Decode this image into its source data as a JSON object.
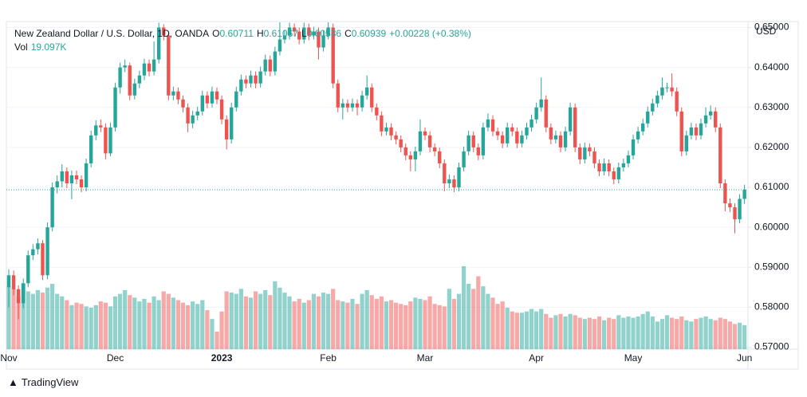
{
  "chart_data": {
    "type": "candlestick",
    "title": "New Zealand Dollar / U.S. Dollar, 1D, OANDA",
    "legend": {
      "o": "O",
      "h": "H",
      "l": "L",
      "c": "C",
      "change": "+0.00228 (+0.38%)",
      "vol": "Vol",
      "vol_value": "19.097K"
    },
    "y_axis_label": "USD",
    "up_color": "#26a69a",
    "down_color": "#ef5350",
    "grid": true,
    "ylim": [
      0.5695,
      0.6513
    ],
    "yticks": [
      {
        "value": 0.57,
        "label": "0.57000"
      },
      {
        "value": 0.58,
        "label": "0.58000"
      },
      {
        "value": 0.59,
        "label": "0.59000"
      },
      {
        "value": 0.6,
        "label": "0.60000"
      },
      {
        "value": 0.61,
        "label": "0.61000"
      },
      {
        "value": 0.62,
        "label": "0.62000"
      },
      {
        "value": 0.63,
        "label": "0.63000"
      },
      {
        "value": 0.64,
        "label": "0.64000"
      },
      {
        "value": 0.65,
        "label": "0.65000"
      }
    ],
    "volume_lim": [
      0,
      260000
    ],
    "categories": [
      "Nov",
      null,
      null,
      null,
      null,
      null,
      null,
      null,
      null,
      null,
      null,
      null,
      null,
      null,
      null,
      null,
      null,
      null,
      null,
      null,
      null,
      null,
      "Dec",
      null,
      null,
      null,
      null,
      null,
      null,
      null,
      null,
      null,
      null,
      null,
      null,
      null,
      null,
      null,
      null,
      null,
      null,
      null,
      null,
      null,
      "2023",
      null,
      null,
      null,
      null,
      null,
      null,
      null,
      null,
      null,
      null,
      null,
      null,
      null,
      null,
      null,
      null,
      null,
      null,
      null,
      null,
      null,
      "Feb",
      null,
      null,
      null,
      null,
      null,
      null,
      null,
      null,
      null,
      null,
      null,
      null,
      null,
      null,
      null,
      null,
      null,
      null,
      null,
      "Mar",
      null,
      null,
      null,
      null,
      null,
      null,
      null,
      null,
      null,
      null,
      null,
      null,
      null,
      null,
      null,
      null,
      null,
      null,
      null,
      null,
      null,
      null,
      "Apr",
      null,
      null,
      null,
      null,
      null,
      null,
      null,
      null,
      null,
      null,
      null,
      null,
      null,
      null,
      null,
      null,
      null,
      null,
      null,
      "May",
      null,
      null,
      null,
      null,
      null,
      null,
      null,
      null,
      null,
      null,
      null,
      null,
      null,
      null,
      null,
      null,
      null,
      null,
      null,
      null,
      null,
      null,
      "Jun"
    ],
    "candles": [
      [
        0.585,
        0.5895,
        0.58,
        0.588
      ],
      [
        0.588,
        0.5892,
        0.583,
        0.5845
      ],
      [
        0.5845,
        0.5855,
        0.577,
        0.581
      ],
      [
        0.581,
        0.5872,
        0.5798,
        0.586
      ],
      [
        0.586,
        0.5942,
        0.585,
        0.593
      ],
      [
        0.593,
        0.5958,
        0.5918,
        0.5945
      ],
      [
        0.5945,
        0.5972,
        0.5932,
        0.596
      ],
      [
        0.596,
        0.5968,
        0.5868,
        0.588
      ],
      [
        0.588,
        0.6012,
        0.587,
        0.6
      ],
      [
        0.6,
        0.6112,
        0.599,
        0.61
      ],
      [
        0.61,
        0.613,
        0.6085,
        0.6115
      ],
      [
        0.6115,
        0.6158,
        0.61,
        0.614
      ],
      [
        0.614,
        0.615,
        0.6098,
        0.611
      ],
      [
        0.611,
        0.6142,
        0.607,
        0.613
      ],
      [
        0.613,
        0.6142,
        0.6108,
        0.612
      ],
      [
        0.612,
        0.613,
        0.6088,
        0.61
      ],
      [
        0.61,
        0.6172,
        0.609,
        0.616
      ],
      [
        0.616,
        0.6242,
        0.615,
        0.623
      ],
      [
        0.623,
        0.6268,
        0.6218,
        0.6255
      ],
      [
        0.6255,
        0.627,
        0.6238,
        0.625
      ],
      [
        0.625,
        0.626,
        0.617,
        0.6185
      ],
      [
        0.6185,
        0.6262,
        0.6178,
        0.625
      ],
      [
        0.625,
        0.6362,
        0.624,
        0.635
      ],
      [
        0.635,
        0.6412,
        0.6335,
        0.64
      ],
      [
        0.64,
        0.642,
        0.6388,
        0.6405
      ],
      [
        0.6405,
        0.6412,
        0.6318,
        0.633
      ],
      [
        0.633,
        0.6372,
        0.632,
        0.636
      ],
      [
        0.636,
        0.6392,
        0.6348,
        0.638
      ],
      [
        0.638,
        0.6422,
        0.6368,
        0.641
      ],
      [
        0.641,
        0.642,
        0.6378,
        0.639
      ],
      [
        0.639,
        0.6465,
        0.638,
        0.642
      ],
      [
        0.642,
        0.6512,
        0.641,
        0.65
      ],
      [
        0.65,
        0.6508,
        0.6468,
        0.648
      ],
      [
        0.648,
        0.649,
        0.6318,
        0.633
      ],
      [
        0.633,
        0.6352,
        0.6318,
        0.634
      ],
      [
        0.634,
        0.635,
        0.6308,
        0.632
      ],
      [
        0.632,
        0.633,
        0.6288,
        0.63
      ],
      [
        0.63,
        0.631,
        0.6238,
        0.626
      ],
      [
        0.626,
        0.6292,
        0.6248,
        0.628
      ],
      [
        0.628,
        0.6302,
        0.6268,
        0.629
      ],
      [
        0.629,
        0.6342,
        0.628,
        0.633
      ],
      [
        0.633,
        0.634,
        0.6298,
        0.631
      ],
      [
        0.631,
        0.6352,
        0.63,
        0.634
      ],
      [
        0.634,
        0.635,
        0.6308,
        0.632
      ],
      [
        0.632,
        0.633,
        0.6258,
        0.627
      ],
      [
        0.627,
        0.628,
        0.6195,
        0.622
      ],
      [
        0.622,
        0.6312,
        0.621,
        0.63
      ],
      [
        0.63,
        0.6352,
        0.629,
        0.634
      ],
      [
        0.634,
        0.6382,
        0.633,
        0.637
      ],
      [
        0.637,
        0.638,
        0.6348,
        0.636
      ],
      [
        0.636,
        0.6392,
        0.635,
        0.638
      ],
      [
        0.638,
        0.639,
        0.6348,
        0.636
      ],
      [
        0.636,
        0.6402,
        0.635,
        0.639
      ],
      [
        0.639,
        0.6432,
        0.638,
        0.642
      ],
      [
        0.642,
        0.643,
        0.6378,
        0.639
      ],
      [
        0.639,
        0.6452,
        0.638,
        0.644
      ],
      [
        0.644,
        0.653,
        0.643,
        0.647
      ],
      [
        0.647,
        0.6492,
        0.646,
        0.648
      ],
      [
        0.648,
        0.6512,
        0.647,
        0.65
      ],
      [
        0.65,
        0.651,
        0.6478,
        0.649
      ],
      [
        0.649,
        0.65,
        0.6458,
        0.647
      ],
      [
        0.647,
        0.6512,
        0.646,
        0.65
      ],
      [
        0.65,
        0.651,
        0.6468,
        0.648
      ],
      [
        0.648,
        0.6502,
        0.647,
        0.649
      ],
      [
        0.649,
        0.65,
        0.642,
        0.645
      ],
      [
        0.645,
        0.6492,
        0.644,
        0.648
      ],
      [
        0.648,
        0.6535,
        0.647,
        0.65
      ],
      [
        0.65,
        0.651,
        0.6348,
        0.636
      ],
      [
        0.636,
        0.637,
        0.6288,
        0.63
      ],
      [
        0.63,
        0.6322,
        0.627,
        0.631
      ],
      [
        0.631,
        0.632,
        0.6288,
        0.63
      ],
      [
        0.63,
        0.6322,
        0.629,
        0.631
      ],
      [
        0.631,
        0.632,
        0.628,
        0.63
      ],
      [
        0.63,
        0.6342,
        0.629,
        0.633
      ],
      [
        0.633,
        0.638,
        0.632,
        0.635
      ],
      [
        0.635,
        0.636,
        0.6288,
        0.63
      ],
      [
        0.63,
        0.631,
        0.6268,
        0.628
      ],
      [
        0.628,
        0.629,
        0.6228,
        0.624
      ],
      [
        0.624,
        0.6262,
        0.623,
        0.625
      ],
      [
        0.625,
        0.626,
        0.6218,
        0.623
      ],
      [
        0.623,
        0.624,
        0.6208,
        0.622
      ],
      [
        0.622,
        0.623,
        0.6188,
        0.62
      ],
      [
        0.62,
        0.621,
        0.6168,
        0.618
      ],
      [
        0.618,
        0.619,
        0.614,
        0.617
      ],
      [
        0.617,
        0.6202,
        0.614,
        0.619
      ],
      [
        0.619,
        0.627,
        0.618,
        0.624
      ],
      [
        0.624,
        0.625,
        0.6218,
        0.623
      ],
      [
        0.623,
        0.624,
        0.6188,
        0.62
      ],
      [
        0.62,
        0.621,
        0.6178,
        0.619
      ],
      [
        0.619,
        0.62,
        0.6148,
        0.616
      ],
      [
        0.616,
        0.617,
        0.609,
        0.611
      ],
      [
        0.611,
        0.6132,
        0.6098,
        0.612
      ],
      [
        0.612,
        0.613,
        0.6088,
        0.61
      ],
      [
        0.61,
        0.6162,
        0.609,
        0.615
      ],
      [
        0.615,
        0.6202,
        0.614,
        0.619
      ],
      [
        0.619,
        0.6242,
        0.618,
        0.623
      ],
      [
        0.623,
        0.624,
        0.6188,
        0.62
      ],
      [
        0.62,
        0.621,
        0.6168,
        0.618
      ],
      [
        0.618,
        0.6262,
        0.617,
        0.625
      ],
      [
        0.625,
        0.6285,
        0.624,
        0.627
      ],
      [
        0.627,
        0.628,
        0.6228,
        0.624
      ],
      [
        0.624,
        0.625,
        0.6218,
        0.623
      ],
      [
        0.623,
        0.624,
        0.6198,
        0.621
      ],
      [
        0.621,
        0.6262,
        0.62,
        0.625
      ],
      [
        0.625,
        0.626,
        0.6228,
        0.624
      ],
      [
        0.624,
        0.625,
        0.6198,
        0.621
      ],
      [
        0.621,
        0.6242,
        0.62,
        0.623
      ],
      [
        0.623,
        0.6262,
        0.622,
        0.625
      ],
      [
        0.625,
        0.6282,
        0.624,
        0.627
      ],
      [
        0.627,
        0.6312,
        0.626,
        0.63
      ],
      [
        0.63,
        0.6375,
        0.629,
        0.632
      ],
      [
        0.632,
        0.633,
        0.6238,
        0.625
      ],
      [
        0.625,
        0.626,
        0.6208,
        0.622
      ],
      [
        0.622,
        0.6242,
        0.621,
        0.623
      ],
      [
        0.623,
        0.624,
        0.6188,
        0.62
      ],
      [
        0.62,
        0.6252,
        0.619,
        0.624
      ],
      [
        0.624,
        0.6312,
        0.623,
        0.63
      ],
      [
        0.63,
        0.631,
        0.6188,
        0.62
      ],
      [
        0.62,
        0.621,
        0.6158,
        0.617
      ],
      [
        0.617,
        0.6212,
        0.616,
        0.62
      ],
      [
        0.62,
        0.621,
        0.6178,
        0.619
      ],
      [
        0.619,
        0.62,
        0.6148,
        0.616
      ],
      [
        0.616,
        0.617,
        0.6128,
        0.614
      ],
      [
        0.614,
        0.6172,
        0.613,
        0.616
      ],
      [
        0.616,
        0.617,
        0.6128,
        0.614
      ],
      [
        0.614,
        0.615,
        0.6108,
        0.612
      ],
      [
        0.612,
        0.6162,
        0.611,
        0.615
      ],
      [
        0.615,
        0.6172,
        0.614,
        0.616
      ],
      [
        0.616,
        0.6192,
        0.615,
        0.618
      ],
      [
        0.618,
        0.6232,
        0.617,
        0.622
      ],
      [
        0.622,
        0.6252,
        0.621,
        0.624
      ],
      [
        0.624,
        0.6272,
        0.623,
        0.626
      ],
      [
        0.626,
        0.6302,
        0.625,
        0.629
      ],
      [
        0.629,
        0.6322,
        0.628,
        0.631
      ],
      [
        0.631,
        0.6342,
        0.63,
        0.633
      ],
      [
        0.633,
        0.6375,
        0.632,
        0.635
      ],
      [
        0.635,
        0.6362,
        0.6338,
        0.635
      ],
      [
        0.635,
        0.6385,
        0.6328,
        0.634
      ],
      [
        0.634,
        0.635,
        0.6278,
        0.629
      ],
      [
        0.629,
        0.63,
        0.6178,
        0.619
      ],
      [
        0.619,
        0.6242,
        0.618,
        0.623
      ],
      [
        0.623,
        0.6262,
        0.622,
        0.625
      ],
      [
        0.625,
        0.626,
        0.6218,
        0.623
      ],
      [
        0.623,
        0.6272,
        0.622,
        0.626
      ],
      [
        0.626,
        0.63,
        0.625,
        0.628
      ],
      [
        0.628,
        0.6305,
        0.627,
        0.629
      ],
      [
        0.629,
        0.63,
        0.6238,
        0.625
      ],
      [
        0.625,
        0.626,
        0.6098,
        0.611
      ],
      [
        0.611,
        0.612,
        0.604,
        0.606
      ],
      [
        0.606,
        0.6072,
        0.6038,
        0.605
      ],
      [
        0.605,
        0.606,
        0.5985,
        0.602
      ],
      [
        0.602,
        0.6083,
        0.601,
        0.60711
      ],
      [
        0.60711,
        0.61067,
        0.60586,
        0.60939
      ]
    ],
    "volume": [
      50000,
      48000,
      42000,
      52000,
      46000,
      44000,
      47000,
      45000,
      49000,
      52000,
      44000,
      42000,
      39000,
      35000,
      37000,
      36000,
      34000,
      33000,
      35000,
      38000,
      37000,
      34000,
      42000,
      44000,
      47000,
      43000,
      41000,
      38000,
      40000,
      37000,
      42000,
      39000,
      46000,
      44000,
      41000,
      39000,
      37000,
      35000,
      38000,
      36000,
      39000,
      31000,
      24000,
      14000,
      30000,
      46000,
      45000,
      44000,
      48000,
      42000,
      41000,
      46000,
      44000,
      47000,
      43000,
      54000,
      49000,
      45000,
      42000,
      38000,
      40000,
      37000,
      39000,
      44000,
      42000,
      45000,
      44000,
      48000,
      39000,
      38000,
      37000,
      40000,
      36000,
      44000,
      47000,
      43000,
      40000,
      42000,
      38000,
      39000,
      37000,
      36000,
      35000,
      38000,
      41000,
      40000,
      39000,
      42000,
      36000,
      35000,
      34000,
      48000,
      40000,
      44000,
      66000,
      52000,
      48000,
      58000,
      50000,
      44000,
      41000,
      36000,
      38000,
      33000,
      30000,
      29000,
      29000,
      30000,
      32000,
      30000,
      32000,
      28000,
      25000,
      27000,
      28000,
      26000,
      28000,
      27000,
      25000,
      24000,
      25000,
      24000,
      26000,
      23000,
      25000,
      24000,
      27000,
      25000,
      26000,
      25000,
      26000,
      28000,
      30000,
      26000,
      22000,
      24000,
      27000,
      25000,
      24000,
      26000,
      23000,
      22000,
      24000,
      25000,
      26000,
      24000,
      23000,
      25000,
      24000,
      22000,
      20000,
      21000,
      19097
    ]
  },
  "footer": {
    "brand": "TradingView"
  }
}
